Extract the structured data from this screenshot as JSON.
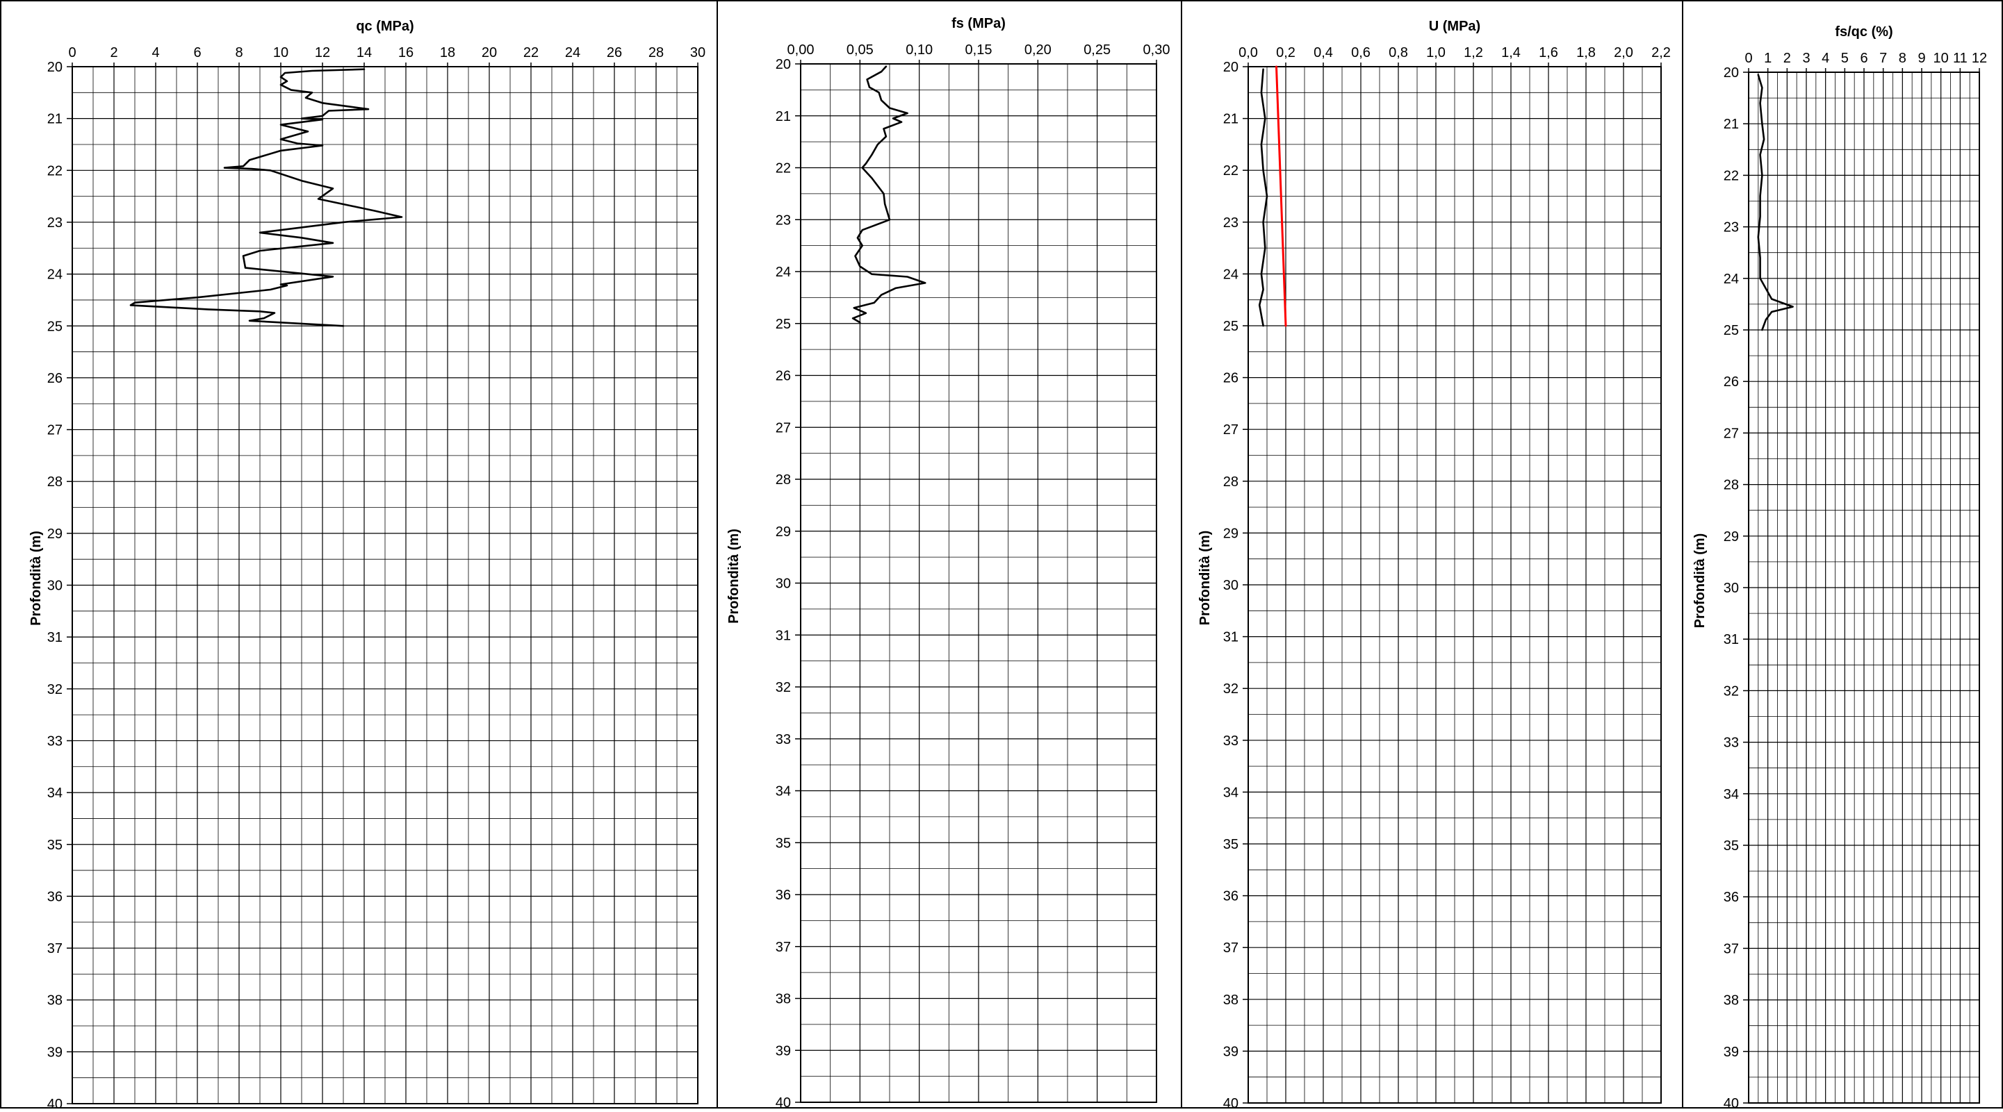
{
  "chart_data": [
    {
      "type": "line",
      "title": "qc (MPa)",
      "xlabel": "qc (MPa)",
      "ylabel": "Profondità (m)",
      "xlim": [
        0,
        30
      ],
      "ylim": [
        20,
        40
      ],
      "y_inverted": true,
      "x_ticks": [
        "0",
        "2",
        "4",
        "6",
        "8",
        "10",
        "12",
        "14",
        "16",
        "18",
        "20",
        "22",
        "24",
        "26",
        "28",
        "30"
      ],
      "y_ticks": [
        "20",
        "21",
        "22",
        "23",
        "24",
        "25",
        "26",
        "27",
        "28",
        "29",
        "30",
        "31",
        "32",
        "33",
        "34",
        "35",
        "36",
        "37",
        "38",
        "39",
        "40"
      ],
      "grid": true,
      "series": [
        {
          "color": "#000000",
          "points": [
            {
              "x": 14.0,
              "y": 20.05
            },
            {
              "x": 11.5,
              "y": 20.08
            },
            {
              "x": 10.2,
              "y": 20.12
            },
            {
              "x": 10.0,
              "y": 20.2
            },
            {
              "x": 10.3,
              "y": 20.28
            },
            {
              "x": 10.0,
              "y": 20.35
            },
            {
              "x": 10.5,
              "y": 20.45
            },
            {
              "x": 11.5,
              "y": 20.5
            },
            {
              "x": 11.2,
              "y": 20.6
            },
            {
              "x": 12.0,
              "y": 20.7
            },
            {
              "x": 14.2,
              "y": 20.82
            },
            {
              "x": 12.3,
              "y": 20.85
            },
            {
              "x": 12.0,
              "y": 20.95
            },
            {
              "x": 11.0,
              "y": 21.0
            },
            {
              "x": 12.0,
              "y": 21.02
            },
            {
              "x": 10.0,
              "y": 21.12
            },
            {
              "x": 11.3,
              "y": 21.25
            },
            {
              "x": 10.0,
              "y": 21.4
            },
            {
              "x": 10.8,
              "y": 21.48
            },
            {
              "x": 12.0,
              "y": 21.52
            },
            {
              "x": 10.0,
              "y": 21.62
            },
            {
              "x": 8.5,
              "y": 21.8
            },
            {
              "x": 8.2,
              "y": 21.92
            },
            {
              "x": 7.3,
              "y": 21.95
            },
            {
              "x": 8.6,
              "y": 21.97
            },
            {
              "x": 9.5,
              "y": 22.0
            },
            {
              "x": 11.0,
              "y": 22.2
            },
            {
              "x": 12.5,
              "y": 22.35
            },
            {
              "x": 11.8,
              "y": 22.55
            },
            {
              "x": 14.5,
              "y": 22.78
            },
            {
              "x": 15.8,
              "y": 22.9
            },
            {
              "x": 13.0,
              "y": 23.0
            },
            {
              "x": 9.0,
              "y": 23.2
            },
            {
              "x": 11.0,
              "y": 23.3
            },
            {
              "x": 12.5,
              "y": 23.4
            },
            {
              "x": 9.0,
              "y": 23.55
            },
            {
              "x": 8.2,
              "y": 23.65
            },
            {
              "x": 8.3,
              "y": 23.88
            },
            {
              "x": 12.5,
              "y": 24.05
            },
            {
              "x": 10.0,
              "y": 24.2
            },
            {
              "x": 10.3,
              "y": 24.22
            },
            {
              "x": 9.5,
              "y": 24.3
            },
            {
              "x": 6.0,
              "y": 24.45
            },
            {
              "x": 3.0,
              "y": 24.55
            },
            {
              "x": 2.8,
              "y": 24.6
            },
            {
              "x": 6.5,
              "y": 24.68
            },
            {
              "x": 9.0,
              "y": 24.72
            },
            {
              "x": 9.7,
              "y": 24.75
            },
            {
              "x": 9.2,
              "y": 24.85
            },
            {
              "x": 8.5,
              "y": 24.9
            },
            {
              "x": 13.0,
              "y": 25.0
            }
          ]
        }
      ]
    },
    {
      "type": "line",
      "title": "fs (MPa)",
      "xlabel": "fs (MPa)",
      "ylabel": "Profondità (m)",
      "xlim": [
        0,
        0.3
      ],
      "ylim": [
        20,
        40
      ],
      "y_inverted": true,
      "x_ticks": [
        "0,00",
        "0,05",
        "0,10",
        "0,15",
        "0,20",
        "0,25",
        "0,30"
      ],
      "y_ticks": [
        "20",
        "21",
        "22",
        "23",
        "24",
        "25",
        "26",
        "27",
        "28",
        "29",
        "30",
        "31",
        "32",
        "33",
        "34",
        "35",
        "36",
        "37",
        "38",
        "39",
        "40"
      ],
      "grid": true,
      "series": [
        {
          "color": "#000000",
          "points": [
            {
              "x": 0.072,
              "y": 20.05
            },
            {
              "x": 0.068,
              "y": 20.15
            },
            {
              "x": 0.056,
              "y": 20.3
            },
            {
              "x": 0.058,
              "y": 20.45
            },
            {
              "x": 0.066,
              "y": 20.55
            },
            {
              "x": 0.068,
              "y": 20.7
            },
            {
              "x": 0.075,
              "y": 20.85
            },
            {
              "x": 0.09,
              "y": 20.95
            },
            {
              "x": 0.078,
              "y": 21.05
            },
            {
              "x": 0.085,
              "y": 21.12
            },
            {
              "x": 0.07,
              "y": 21.25
            },
            {
              "x": 0.072,
              "y": 21.4
            },
            {
              "x": 0.065,
              "y": 21.55
            },
            {
              "x": 0.06,
              "y": 21.75
            },
            {
              "x": 0.055,
              "y": 21.92
            },
            {
              "x": 0.052,
              "y": 22.0
            },
            {
              "x": 0.06,
              "y": 22.2
            },
            {
              "x": 0.07,
              "y": 22.5
            },
            {
              "x": 0.071,
              "y": 22.7
            },
            {
              "x": 0.075,
              "y": 23.0
            },
            {
              "x": 0.052,
              "y": 23.2
            },
            {
              "x": 0.048,
              "y": 23.35
            },
            {
              "x": 0.052,
              "y": 23.5
            },
            {
              "x": 0.046,
              "y": 23.7
            },
            {
              "x": 0.05,
              "y": 23.9
            },
            {
              "x": 0.06,
              "y": 24.05
            },
            {
              "x": 0.09,
              "y": 24.1
            },
            {
              "x": 0.105,
              "y": 24.22
            },
            {
              "x": 0.08,
              "y": 24.32
            },
            {
              "x": 0.068,
              "y": 24.45
            },
            {
              "x": 0.062,
              "y": 24.6
            },
            {
              "x": 0.045,
              "y": 24.7
            },
            {
              "x": 0.055,
              "y": 24.8
            },
            {
              "x": 0.044,
              "y": 24.9
            },
            {
              "x": 0.05,
              "y": 24.98
            }
          ]
        }
      ]
    },
    {
      "type": "line",
      "title": "U (MPa)",
      "xlabel": "U (MPa)",
      "ylabel": "Profondità (m)",
      "xlim": [
        0,
        2.2
      ],
      "ylim": [
        20,
        40
      ],
      "y_inverted": true,
      "x_ticks": [
        "0,0",
        "0,2",
        "0,4",
        "0,6",
        "0,8",
        "1,0",
        "1,2",
        "1,4",
        "1,6",
        "1,8",
        "2,0",
        "2,2"
      ],
      "y_ticks": [
        "20",
        "21",
        "22",
        "23",
        "24",
        "25",
        "26",
        "27",
        "28",
        "29",
        "30",
        "31",
        "32",
        "33",
        "34",
        "35",
        "36",
        "37",
        "38",
        "39",
        "40"
      ],
      "grid": true,
      "series": [
        {
          "color": "#000000",
          "points": [
            {
              "x": 0.08,
              "y": 20.05
            },
            {
              "x": 0.07,
              "y": 20.5
            },
            {
              "x": 0.09,
              "y": 21.0
            },
            {
              "x": 0.07,
              "y": 21.5
            },
            {
              "x": 0.08,
              "y": 22.0
            },
            {
              "x": 0.1,
              "y": 22.5
            },
            {
              "x": 0.08,
              "y": 23.0
            },
            {
              "x": 0.09,
              "y": 23.5
            },
            {
              "x": 0.07,
              "y": 24.0
            },
            {
              "x": 0.08,
              "y": 24.3
            },
            {
              "x": 0.06,
              "y": 24.6
            },
            {
              "x": 0.08,
              "y": 25.0
            }
          ]
        },
        {
          "color": "#ff0000",
          "points": [
            {
              "x": 0.15,
              "y": 20.0
            },
            {
              "x": 0.2,
              "y": 25.0
            }
          ]
        }
      ]
    },
    {
      "type": "line",
      "title": "fs/qc (%)",
      "xlabel": "fs/qc (%)",
      "ylabel": "Profondità (m)",
      "xlim": [
        0,
        12
      ],
      "ylim": [
        20,
        40
      ],
      "y_inverted": true,
      "x_ticks": [
        "0",
        "1",
        "2",
        "3",
        "4",
        "5",
        "6",
        "7",
        "8",
        "9",
        "10",
        "11",
        "12"
      ],
      "y_ticks": [
        "20",
        "21",
        "22",
        "23",
        "24",
        "25",
        "26",
        "27",
        "28",
        "29",
        "30",
        "31",
        "32",
        "33",
        "34",
        "35",
        "36",
        "37",
        "38",
        "39",
        "40"
      ],
      "grid": true,
      "series": [
        {
          "color": "#000000",
          "points": [
            {
              "x": 0.5,
              "y": 20.05
            },
            {
              "x": 0.7,
              "y": 20.3
            },
            {
              "x": 0.6,
              "y": 20.6
            },
            {
              "x": 0.7,
              "y": 21.0
            },
            {
              "x": 0.8,
              "y": 21.3
            },
            {
              "x": 0.6,
              "y": 21.6
            },
            {
              "x": 0.7,
              "y": 22.0
            },
            {
              "x": 0.6,
              "y": 22.4
            },
            {
              "x": 0.6,
              "y": 22.8
            },
            {
              "x": 0.5,
              "y": 23.2
            },
            {
              "x": 0.6,
              "y": 23.6
            },
            {
              "x": 0.6,
              "y": 24.0
            },
            {
              "x": 0.9,
              "y": 24.2
            },
            {
              "x": 1.2,
              "y": 24.4
            },
            {
              "x": 2.3,
              "y": 24.55
            },
            {
              "x": 1.2,
              "y": 24.65
            },
            {
              "x": 0.9,
              "y": 24.8
            },
            {
              "x": 0.7,
              "y": 25.0
            }
          ]
        }
      ]
    }
  ]
}
